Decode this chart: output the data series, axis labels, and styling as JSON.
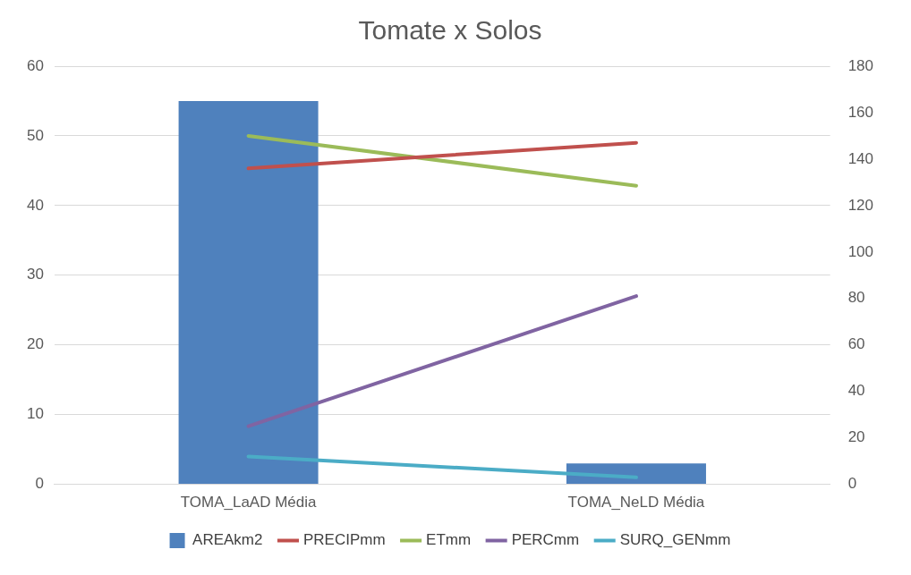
{
  "chart_data": {
    "type": "bar",
    "title": "Tomate x Solos",
    "categories": [
      "TOMA_LaAD Média",
      "TOMA_NeLD Média"
    ],
    "series": [
      {
        "name": "AREAkm2",
        "color": "#4f81bd",
        "values": [
          55,
          3
        ]
      },
      {
        "name": "PRECIPmm",
        "type": "line",
        "axis": "y2",
        "color": "#c0504d",
        "values": [
          136,
          147
        ]
      },
      {
        "name": "ETmm",
        "type": "line",
        "axis": "y2",
        "color": "#9bbb59",
        "values": [
          150,
          128.5
        ]
      },
      {
        "name": "PERCmm",
        "type": "line",
        "axis": "y2",
        "color": "#8064a2",
        "values": [
          25,
          81
        ]
      },
      {
        "name": "SURQ_GENmm",
        "type": "line",
        "axis": "y2",
        "color": "#4bacc6",
        "values": [
          12,
          3
        ]
      }
    ],
    "ylim": [
      0,
      60
    ],
    "yticks": [
      0,
      10,
      20,
      30,
      40,
      50,
      60
    ],
    "y2lim": [
      0,
      180
    ],
    "y2ticks": [
      0,
      20,
      40,
      60,
      80,
      100,
      120,
      140,
      160,
      180
    ],
    "grid": "y",
    "legend": "bottom",
    "marker": "none",
    "line_style": "solid"
  }
}
